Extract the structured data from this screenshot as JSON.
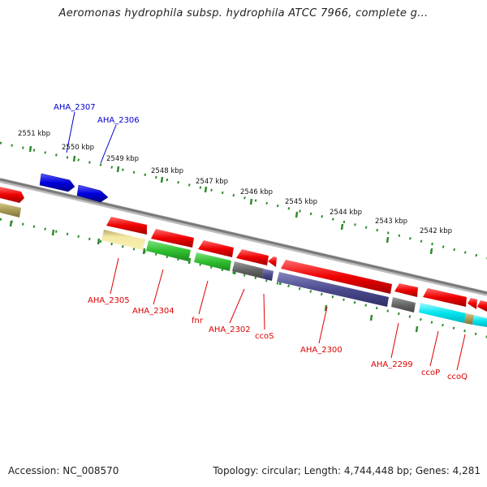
{
  "title": "Aeromonas hydrophila subsp. hydrophila ATCC 7966, complete g...",
  "footer": {
    "accession": "Accession: NC_008570",
    "topology": "Topology: circular; Length: 4,744,448 bp; Genes: 4,281"
  },
  "colors": {
    "forward_gene": "#0000cc",
    "reverse_gene": "#dd0000",
    "backbone": "#888888",
    "ticks": "#2e8b2e"
  },
  "scale": {
    "tick_labels": [
      "2551 kbp",
      "2550 kbp",
      "2549 kbp",
      "2548 kbp",
      "2547 kbp",
      "2546 kbp",
      "2545 kbp",
      "2544 kbp",
      "2543 kbp",
      "2542 kbp"
    ]
  },
  "genes": [
    {
      "label": "AHA_2307",
      "strand": "+",
      "color": "#0000cc"
    },
    {
      "label": "AHA_2306",
      "strand": "+",
      "color": "#0000cc"
    },
    {
      "label": "AHA_2305",
      "strand": "-",
      "color": "#dd0000"
    },
    {
      "label": "AHA_2304",
      "strand": "-",
      "color": "#dd0000"
    },
    {
      "label": "fnr",
      "strand": "-",
      "color": "#dd0000"
    },
    {
      "label": "AHA_2302",
      "strand": "-",
      "color": "#dd0000"
    },
    {
      "label": "ccoS",
      "strand": "-",
      "color": "#dd0000"
    },
    {
      "label": "AHA_2300",
      "strand": "-",
      "color": "#dd0000"
    },
    {
      "label": "AHA_2299",
      "strand": "-",
      "color": "#dd0000"
    },
    {
      "label": "ccoP",
      "strand": "-",
      "color": "#dd0000"
    },
    {
      "label": "ccoQ",
      "strand": "-",
      "color": "#dd0000"
    }
  ],
  "feature_colors": {
    "cds": "#dd0000",
    "forward_cds": "#0000cc",
    "category_yellow": "#f0e68c",
    "category_green": "#2fbf2f",
    "category_grey": "#666666",
    "category_purple": "#4b4b8f",
    "category_cyan": "#00e5ee",
    "category_olive": "#a89a55"
  }
}
